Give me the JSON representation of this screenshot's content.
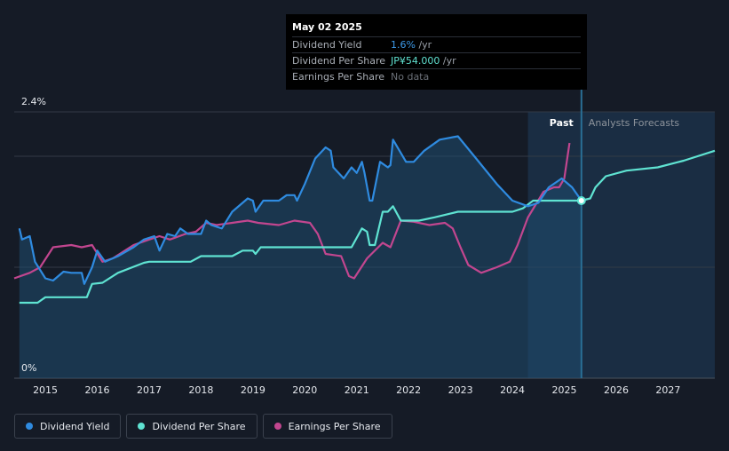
{
  "tooltip": {
    "date": "May 02 2025",
    "rows": [
      {
        "label": "Dividend Yield",
        "value": "1.6%",
        "unit": "/yr"
      },
      {
        "label": "Dividend Per Share",
        "value": "JP¥54.000",
        "unit": "/yr"
      },
      {
        "label": "Earnings Per Share",
        "value": "No data",
        "unit": ""
      }
    ]
  },
  "labels": {
    "past": "Past",
    "forecast": "Analysts Forecasts"
  },
  "legend": [
    {
      "label": "Dividend Yield",
      "color": "#2f8be0"
    },
    {
      "label": "Dividend Per Share",
      "color": "#5fe3d2"
    },
    {
      "label": "Earnings Per Share",
      "color": "#c2468f"
    }
  ],
  "chart_data": {
    "type": "line",
    "ytick_labels": [
      "2.4%",
      "0%"
    ],
    "ylim": [
      0,
      2.4
    ],
    "xlim": [
      2014.4,
      2027.9
    ],
    "xticks": [
      2015,
      2016,
      2017,
      2018,
      2019,
      2020,
      2021,
      2022,
      2023,
      2024,
      2025,
      2026,
      2027
    ],
    "past_end": 2025.33,
    "forecast_band_start": 2024.3,
    "marker": {
      "x": 2025.33,
      "y": 1.6
    },
    "series": [
      {
        "name": "Dividend Yield",
        "color": "#2f8be0",
        "points": [
          [
            2014.5,
            1.35
          ],
          [
            2014.55,
            1.25
          ],
          [
            2014.7,
            1.28
          ],
          [
            2014.8,
            1.05
          ],
          [
            2015.0,
            0.9
          ],
          [
            2015.15,
            0.88
          ],
          [
            2015.35,
            0.96
          ],
          [
            2015.5,
            0.95
          ],
          [
            2015.7,
            0.95
          ],
          [
            2015.75,
            0.85
          ],
          [
            2015.9,
            1.0
          ],
          [
            2016.0,
            1.15
          ],
          [
            2016.15,
            1.05
          ],
          [
            2016.4,
            1.1
          ],
          [
            2016.7,
            1.18
          ],
          [
            2016.9,
            1.25
          ],
          [
            2017.1,
            1.28
          ],
          [
            2017.2,
            1.15
          ],
          [
            2017.35,
            1.3
          ],
          [
            2017.5,
            1.28
          ],
          [
            2017.6,
            1.35
          ],
          [
            2017.75,
            1.3
          ],
          [
            2018.0,
            1.3
          ],
          [
            2018.1,
            1.42
          ],
          [
            2018.2,
            1.38
          ],
          [
            2018.4,
            1.35
          ],
          [
            2018.6,
            1.5
          ],
          [
            2018.9,
            1.62
          ],
          [
            2019.0,
            1.6
          ],
          [
            2019.05,
            1.5
          ],
          [
            2019.2,
            1.6
          ],
          [
            2019.5,
            1.6
          ],
          [
            2019.65,
            1.65
          ],
          [
            2019.8,
            1.65
          ],
          [
            2019.85,
            1.6
          ],
          [
            2020.0,
            1.75
          ],
          [
            2020.2,
            1.98
          ],
          [
            2020.4,
            2.08
          ],
          [
            2020.5,
            2.05
          ],
          [
            2020.55,
            1.9
          ],
          [
            2020.75,
            1.8
          ],
          [
            2020.9,
            1.9
          ],
          [
            2021.0,
            1.85
          ],
          [
            2021.1,
            1.95
          ],
          [
            2021.15,
            1.85
          ],
          [
            2021.25,
            1.6
          ],
          [
            2021.3,
            1.6
          ],
          [
            2021.45,
            1.95
          ],
          [
            2021.6,
            1.9
          ],
          [
            2021.65,
            1.92
          ],
          [
            2021.7,
            2.15
          ],
          [
            2021.95,
            1.95
          ],
          [
            2022.1,
            1.95
          ],
          [
            2022.3,
            2.05
          ],
          [
            2022.6,
            2.15
          ],
          [
            2022.95,
            2.18
          ],
          [
            2023.3,
            1.98
          ],
          [
            2023.7,
            1.75
          ],
          [
            2024.0,
            1.6
          ],
          [
            2024.3,
            1.55
          ],
          [
            2024.5,
            1.58
          ],
          [
            2024.7,
            1.72
          ],
          [
            2024.95,
            1.8
          ],
          [
            2025.15,
            1.72
          ],
          [
            2025.33,
            1.6
          ]
        ]
      },
      {
        "name": "Dividend Per Share",
        "color": "#5fe3d2",
        "points": [
          [
            2014.5,
            0.68
          ],
          [
            2014.85,
            0.68
          ],
          [
            2015.0,
            0.73
          ],
          [
            2015.8,
            0.73
          ],
          [
            2015.9,
            0.85
          ],
          [
            2016.1,
            0.86
          ],
          [
            2016.4,
            0.95
          ],
          [
            2016.9,
            1.04
          ],
          [
            2017.0,
            1.05
          ],
          [
            2017.8,
            1.05
          ],
          [
            2018.0,
            1.1
          ],
          [
            2018.6,
            1.1
          ],
          [
            2018.8,
            1.15
          ],
          [
            2019.0,
            1.15
          ],
          [
            2019.05,
            1.12
          ],
          [
            2019.15,
            1.18
          ],
          [
            2020.5,
            1.18
          ],
          [
            2020.8,
            1.18
          ],
          [
            2020.9,
            1.18
          ],
          [
            2021.1,
            1.35
          ],
          [
            2021.2,
            1.32
          ],
          [
            2021.25,
            1.2
          ],
          [
            2021.35,
            1.2
          ],
          [
            2021.5,
            1.5
          ],
          [
            2021.6,
            1.5
          ],
          [
            2021.7,
            1.55
          ],
          [
            2021.85,
            1.42
          ],
          [
            2022.2,
            1.42
          ],
          [
            2022.5,
            1.45
          ],
          [
            2022.95,
            1.5
          ],
          [
            2023.5,
            1.5
          ],
          [
            2024.0,
            1.5
          ],
          [
            2024.2,
            1.53
          ],
          [
            2024.4,
            1.6
          ],
          [
            2025.33,
            1.6
          ],
          [
            2025.5,
            1.62
          ],
          [
            2025.6,
            1.72
          ],
          [
            2025.8,
            1.82
          ],
          [
            2026.2,
            1.87
          ],
          [
            2026.8,
            1.9
          ],
          [
            2027.3,
            1.96
          ],
          [
            2027.9,
            2.05
          ]
        ]
      },
      {
        "name": "Earnings Per Share",
        "color": "#c2468f",
        "points": [
          [
            2014.4,
            0.9
          ],
          [
            2014.7,
            0.95
          ],
          [
            2014.9,
            1.0
          ],
          [
            2015.15,
            1.18
          ],
          [
            2015.5,
            1.2
          ],
          [
            2015.7,
            1.18
          ],
          [
            2015.9,
            1.2
          ],
          [
            2016.1,
            1.05
          ],
          [
            2016.3,
            1.08
          ],
          [
            2016.7,
            1.2
          ],
          [
            2017.0,
            1.25
          ],
          [
            2017.2,
            1.28
          ],
          [
            2017.4,
            1.25
          ],
          [
            2017.7,
            1.3
          ],
          [
            2017.9,
            1.32
          ],
          [
            2018.1,
            1.4
          ],
          [
            2018.3,
            1.38
          ],
          [
            2018.6,
            1.4
          ],
          [
            2018.9,
            1.42
          ],
          [
            2019.1,
            1.4
          ],
          [
            2019.5,
            1.38
          ],
          [
            2019.8,
            1.42
          ],
          [
            2020.1,
            1.4
          ],
          [
            2020.25,
            1.3
          ],
          [
            2020.4,
            1.12
          ],
          [
            2020.7,
            1.1
          ],
          [
            2020.85,
            0.92
          ],
          [
            2020.95,
            0.9
          ],
          [
            2021.2,
            1.08
          ],
          [
            2021.5,
            1.22
          ],
          [
            2021.65,
            1.18
          ],
          [
            2021.85,
            1.42
          ],
          [
            2022.1,
            1.41
          ],
          [
            2022.4,
            1.38
          ],
          [
            2022.7,
            1.4
          ],
          [
            2022.85,
            1.35
          ],
          [
            2023.0,
            1.18
          ],
          [
            2023.15,
            1.02
          ],
          [
            2023.4,
            0.95
          ],
          [
            2023.7,
            1.0
          ],
          [
            2023.95,
            1.05
          ],
          [
            2024.1,
            1.2
          ],
          [
            2024.3,
            1.45
          ],
          [
            2024.6,
            1.68
          ],
          [
            2024.8,
            1.72
          ],
          [
            2024.9,
            1.72
          ],
          [
            2025.0,
            1.8
          ],
          [
            2025.1,
            2.12
          ]
        ]
      }
    ]
  }
}
